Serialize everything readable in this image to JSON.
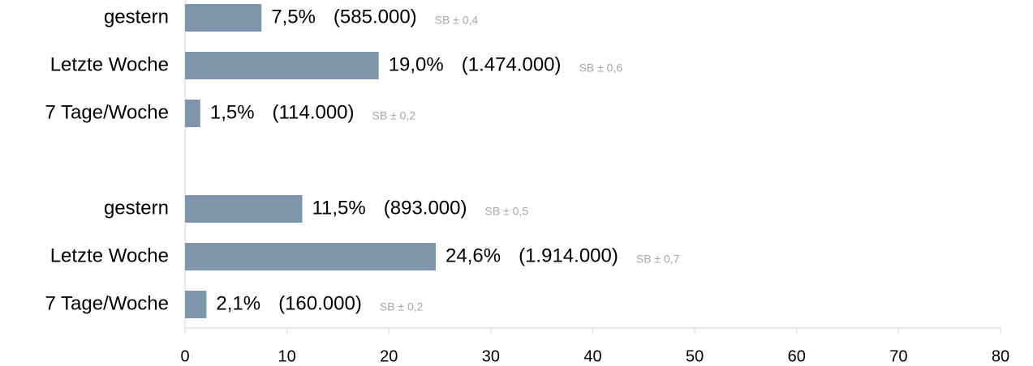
{
  "chart_data": {
    "type": "bar",
    "orientation": "horizontal",
    "categories": [
      "gestern",
      "Letzte Woche",
      "7 Tage/Woche",
      null,
      "gestern",
      "Letzte Woche",
      "7 Tage/Woche"
    ],
    "values": [
      7.5,
      19.0,
      1.5,
      null,
      11.5,
      24.6,
      2.1
    ],
    "value_labels": [
      "7,5%",
      "19,0%",
      "1,5%",
      null,
      "11,5%",
      "24,6%",
      "2,1%"
    ],
    "counts": [
      585000,
      1474000,
      114000,
      null,
      893000,
      1914000,
      160000
    ],
    "count_labels": [
      "(585.000)",
      "(1.474.000)",
      "(114.000)",
      null,
      "(893.000)",
      "(1.914.000)",
      "(160.000)"
    ],
    "sb_labels": [
      "SB ± 0,4",
      "SB ± 0,6",
      "SB ± 0,2",
      null,
      "SB ± 0,5",
      "SB ± 0,7",
      "SB ± 0,2"
    ],
    "color": "#7f96aa",
    "xlim": [
      0,
      80
    ],
    "xticks": [
      0,
      10,
      20,
      30,
      40,
      50,
      60,
      70,
      80
    ]
  }
}
